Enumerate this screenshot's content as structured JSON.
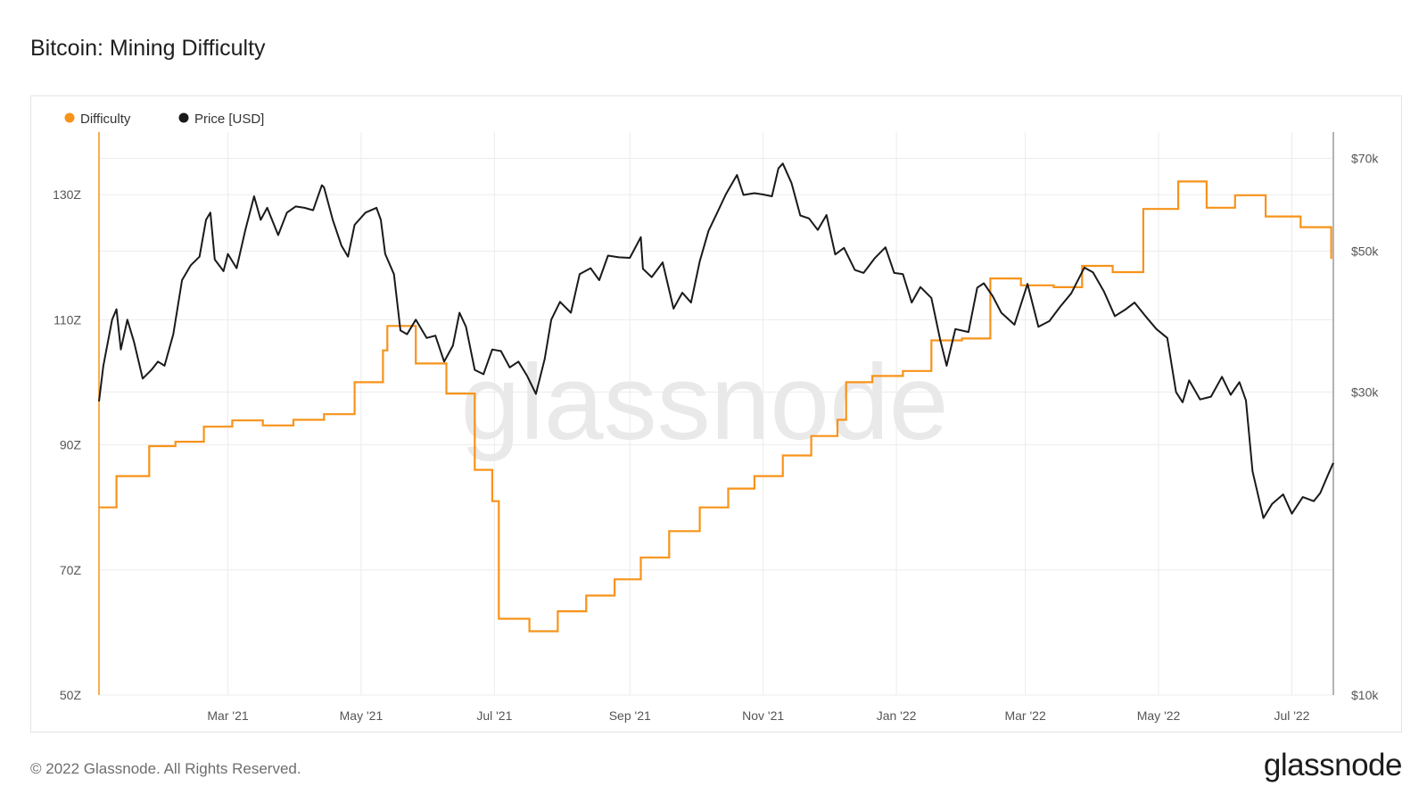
{
  "title": "Bitcoin: Mining Difficulty",
  "footer": {
    "copyright": "© 2022 Glassnode. All Rights Reserved.",
    "logo": "glassnode"
  },
  "watermark": "glassnode",
  "colors": {
    "difficulty": "#f7931a",
    "price": "#1a1a1a",
    "grid": "#ececec"
  },
  "chart_data": {
    "type": "line",
    "title": "Bitcoin: Mining Difficulty",
    "legend_position": "top-left",
    "grid": true,
    "x_ticks": [
      {
        "label": "Mar '21",
        "date": "2021-03-01"
      },
      {
        "label": "May '21",
        "date": "2021-05-01"
      },
      {
        "label": "Jul '21",
        "date": "2021-07-01"
      },
      {
        "label": "Sep '21",
        "date": "2021-09-01"
      },
      {
        "label": "Nov '21",
        "date": "2021-11-01"
      },
      {
        "label": "Jan '22",
        "date": "2022-01-01"
      },
      {
        "label": "Mar '22",
        "date": "2022-03-01"
      },
      {
        "label": "May '22",
        "date": "2022-05-01"
      },
      {
        "label": "Jul '22",
        "date": "2022-07-01"
      }
    ],
    "x_range": [
      "2021-01-01",
      "2022-07-20"
    ],
    "y_left": {
      "ticks": [
        "50Z",
        "70Z",
        "90Z",
        "110Z",
        "130Z"
      ],
      "tick_values": [
        50,
        70,
        90,
        110,
        130
      ],
      "range": [
        50,
        140
      ]
    },
    "y_right": {
      "ticks": [
        "$10k",
        "$30k",
        "$50k",
        "$70k"
      ],
      "tick_values": [
        10000,
        30000,
        50000,
        70000
      ],
      "range": [
        10000,
        77000
      ],
      "scale": "log"
    },
    "series": [
      {
        "name": "Difficulty",
        "axis": "left",
        "step": true,
        "points": [
          [
            "2021-01-01",
            80.0
          ],
          [
            "2021-01-09",
            85.0
          ],
          [
            "2021-01-24",
            89.8
          ],
          [
            "2021-02-05",
            90.5
          ],
          [
            "2021-02-18",
            92.9
          ],
          [
            "2021-03-03",
            93.9
          ],
          [
            "2021-03-17",
            93.1
          ],
          [
            "2021-03-31",
            94.0
          ],
          [
            "2021-04-14",
            94.9
          ],
          [
            "2021-04-28",
            100.0
          ],
          [
            "2021-05-11",
            105.1
          ],
          [
            "2021-05-13",
            109.0
          ],
          [
            "2021-05-26",
            103.0
          ],
          [
            "2021-06-09",
            98.2
          ],
          [
            "2021-06-22",
            86.0
          ],
          [
            "2021-06-30",
            81.0
          ],
          [
            "2021-07-03",
            62.2
          ],
          [
            "2021-07-17",
            60.2
          ],
          [
            "2021-07-30",
            63.4
          ],
          [
            "2021-08-12",
            65.9
          ],
          [
            "2021-08-25",
            68.5
          ],
          [
            "2021-09-06",
            72.0
          ],
          [
            "2021-09-19",
            76.2
          ],
          [
            "2021-10-03",
            80.0
          ],
          [
            "2021-10-16",
            83.0
          ],
          [
            "2021-10-28",
            85.0
          ],
          [
            "2021-11-10",
            88.3
          ],
          [
            "2021-11-23",
            91.4
          ],
          [
            "2021-12-05",
            94.0
          ],
          [
            "2021-12-09",
            100.0
          ],
          [
            "2021-12-21",
            101.0
          ],
          [
            "2022-01-04",
            101.8
          ],
          [
            "2022-01-17",
            106.7
          ],
          [
            "2022-01-31",
            107.0
          ],
          [
            "2022-02-13",
            116.6
          ],
          [
            "2022-02-27",
            115.5
          ],
          [
            "2022-03-14",
            115.2
          ],
          [
            "2022-03-27",
            118.6
          ],
          [
            "2022-04-10",
            117.6
          ],
          [
            "2022-04-24",
            127.7
          ],
          [
            "2022-05-10",
            132.1
          ],
          [
            "2022-05-23",
            127.9
          ],
          [
            "2022-06-05",
            129.9
          ],
          [
            "2022-06-19",
            126.5
          ],
          [
            "2022-07-05",
            124.8
          ],
          [
            "2022-07-19",
            119.7
          ]
        ]
      },
      {
        "name": "Price [USD]",
        "axis": "right",
        "points": [
          [
            "2021-01-01",
            29000
          ],
          [
            "2021-01-03",
            33000
          ],
          [
            "2021-01-07",
            39000
          ],
          [
            "2021-01-09",
            40500
          ],
          [
            "2021-01-11",
            35000
          ],
          [
            "2021-01-14",
            39000
          ],
          [
            "2021-01-17",
            36000
          ],
          [
            "2021-01-21",
            31500
          ],
          [
            "2021-01-25",
            32500
          ],
          [
            "2021-01-28",
            33500
          ],
          [
            "2021-01-31",
            33000
          ],
          [
            "2021-02-04",
            37000
          ],
          [
            "2021-02-08",
            45000
          ],
          [
            "2021-02-12",
            47500
          ],
          [
            "2021-02-16",
            49000
          ],
          [
            "2021-02-19",
            56000
          ],
          [
            "2021-02-21",
            57500
          ],
          [
            "2021-02-23",
            48500
          ],
          [
            "2021-02-27",
            46500
          ],
          [
            "2021-03-01",
            49500
          ],
          [
            "2021-03-05",
            47000
          ],
          [
            "2021-03-09",
            54000
          ],
          [
            "2021-03-13",
            61000
          ],
          [
            "2021-03-16",
            56000
          ],
          [
            "2021-03-19",
            58500
          ],
          [
            "2021-03-24",
            53000
          ],
          [
            "2021-03-28",
            57500
          ],
          [
            "2021-04-01",
            58800
          ],
          [
            "2021-04-05",
            58500
          ],
          [
            "2021-04-09",
            58000
          ],
          [
            "2021-04-13",
            63500
          ],
          [
            "2021-04-14",
            63000
          ],
          [
            "2021-04-18",
            56000
          ],
          [
            "2021-04-22",
            51000
          ],
          [
            "2021-04-25",
            49000
          ],
          [
            "2021-04-28",
            55000
          ],
          [
            "2021-05-03",
            57500
          ],
          [
            "2021-05-08",
            58500
          ],
          [
            "2021-05-10",
            56000
          ],
          [
            "2021-05-12",
            49500
          ],
          [
            "2021-05-16",
            46000
          ],
          [
            "2021-05-19",
            37500
          ],
          [
            "2021-05-22",
            37000
          ],
          [
            "2021-05-26",
            39000
          ],
          [
            "2021-05-31",
            36500
          ],
          [
            "2021-06-04",
            36800
          ],
          [
            "2021-06-08",
            33500
          ],
          [
            "2021-06-12",
            35500
          ],
          [
            "2021-06-15",
            40000
          ],
          [
            "2021-06-18",
            38000
          ],
          [
            "2021-06-22",
            32500
          ],
          [
            "2021-06-26",
            32000
          ],
          [
            "2021-06-30",
            35000
          ],
          [
            "2021-07-04",
            34800
          ],
          [
            "2021-07-08",
            32800
          ],
          [
            "2021-07-12",
            33500
          ],
          [
            "2021-07-16",
            31800
          ],
          [
            "2021-07-20",
            29800
          ],
          [
            "2021-07-24",
            33800
          ],
          [
            "2021-07-27",
            39000
          ],
          [
            "2021-07-31",
            41600
          ],
          [
            "2021-08-05",
            40000
          ],
          [
            "2021-08-09",
            46000
          ],
          [
            "2021-08-14",
            47000
          ],
          [
            "2021-08-18",
            45000
          ],
          [
            "2021-08-22",
            49200
          ],
          [
            "2021-08-27",
            48900
          ],
          [
            "2021-09-01",
            48800
          ],
          [
            "2021-09-06",
            52600
          ],
          [
            "2021-09-07",
            46900
          ],
          [
            "2021-09-11",
            45500
          ],
          [
            "2021-09-16",
            48000
          ],
          [
            "2021-09-21",
            40600
          ],
          [
            "2021-09-25",
            43000
          ],
          [
            "2021-09-29",
            41500
          ],
          [
            "2021-10-03",
            48200
          ],
          [
            "2021-10-07",
            53800
          ],
          [
            "2021-10-11",
            57500
          ],
          [
            "2021-10-15",
            61500
          ],
          [
            "2021-10-20",
            65900
          ],
          [
            "2021-10-23",
            61300
          ],
          [
            "2021-10-28",
            61700
          ],
          [
            "2021-11-01",
            61400
          ],
          [
            "2021-11-05",
            61000
          ],
          [
            "2021-11-08",
            67500
          ],
          [
            "2021-11-10",
            68700
          ],
          [
            "2021-11-14",
            64000
          ],
          [
            "2021-11-18",
            56900
          ],
          [
            "2021-11-22",
            56300
          ],
          [
            "2021-11-26",
            54000
          ],
          [
            "2021-11-30",
            57000
          ],
          [
            "2021-12-04",
            49400
          ],
          [
            "2021-12-08",
            50600
          ],
          [
            "2021-12-13",
            46700
          ],
          [
            "2021-12-17",
            46200
          ],
          [
            "2021-12-22",
            48700
          ],
          [
            "2021-12-27",
            50700
          ],
          [
            "2021-12-31",
            46200
          ],
          [
            "2022-01-04",
            46000
          ],
          [
            "2022-01-08",
            41500
          ],
          [
            "2022-01-12",
            43900
          ],
          [
            "2022-01-17",
            42200
          ],
          [
            "2022-01-21",
            36300
          ],
          [
            "2022-01-24",
            33000
          ],
          [
            "2022-01-28",
            37700
          ],
          [
            "2022-02-03",
            37300
          ],
          [
            "2022-02-07",
            43800
          ],
          [
            "2022-02-10",
            44500
          ],
          [
            "2022-02-14",
            42500
          ],
          [
            "2022-02-18",
            40000
          ],
          [
            "2022-02-24",
            38300
          ],
          [
            "2022-03-02",
            44400
          ],
          [
            "2022-03-07",
            38000
          ],
          [
            "2022-03-12",
            38800
          ],
          [
            "2022-03-17",
            40900
          ],
          [
            "2022-03-22",
            42900
          ],
          [
            "2022-03-28",
            47100
          ],
          [
            "2022-04-01",
            46300
          ],
          [
            "2022-04-06",
            43200
          ],
          [
            "2022-04-11",
            39500
          ],
          [
            "2022-04-16",
            40500
          ],
          [
            "2022-04-20",
            41500
          ],
          [
            "2022-04-25",
            39500
          ],
          [
            "2022-04-30",
            37700
          ],
          [
            "2022-05-05",
            36500
          ],
          [
            "2022-05-09",
            30000
          ],
          [
            "2022-05-12",
            28900
          ],
          [
            "2022-05-15",
            31300
          ],
          [
            "2022-05-20",
            29200
          ],
          [
            "2022-05-25",
            29500
          ],
          [
            "2022-05-30",
            31700
          ],
          [
            "2022-06-03",
            29700
          ],
          [
            "2022-06-07",
            31100
          ],
          [
            "2022-06-10",
            29100
          ],
          [
            "2022-06-13",
            22500
          ],
          [
            "2022-06-18",
            19000
          ],
          [
            "2022-06-22",
            20000
          ],
          [
            "2022-06-27",
            20700
          ],
          [
            "2022-07-01",
            19300
          ],
          [
            "2022-07-06",
            20500
          ],
          [
            "2022-07-11",
            20200
          ],
          [
            "2022-07-14",
            20800
          ],
          [
            "2022-07-18",
            22400
          ],
          [
            "2022-07-20",
            23200
          ]
        ]
      }
    ]
  }
}
